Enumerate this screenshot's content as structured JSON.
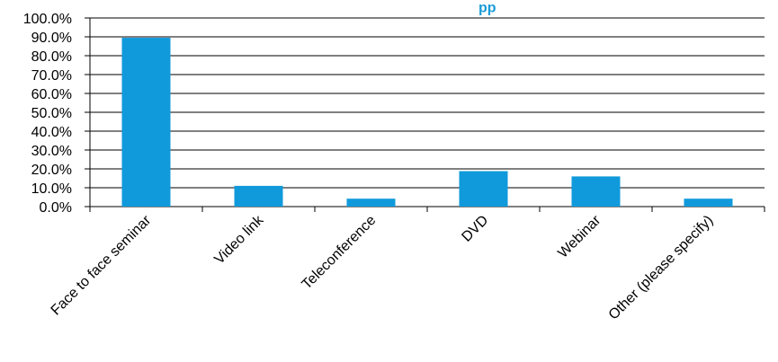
{
  "chart_data": {
    "type": "bar",
    "title_fragment": "pp",
    "categories": [
      "Face to face seminar",
      "Video link",
      "Teleconference",
      "DVD",
      "Webinar",
      "Other (please specify)"
    ],
    "values": [
      89.5,
      11.0,
      4.2,
      18.8,
      16.0,
      4.2
    ],
    "ylim": [
      0,
      100
    ],
    "ytick_labels": [
      "0.0%",
      "10.0%",
      "20.0%",
      "30.0%",
      "40.0%",
      "50.0%",
      "60.0%",
      "70.0%",
      "80.0%",
      "90.0%",
      "100.0%"
    ],
    "grid": true,
    "legend": "none",
    "colors": {
      "bar": "#109ADB",
      "title": "#1A9BD7",
      "grid": "#000000"
    }
  }
}
